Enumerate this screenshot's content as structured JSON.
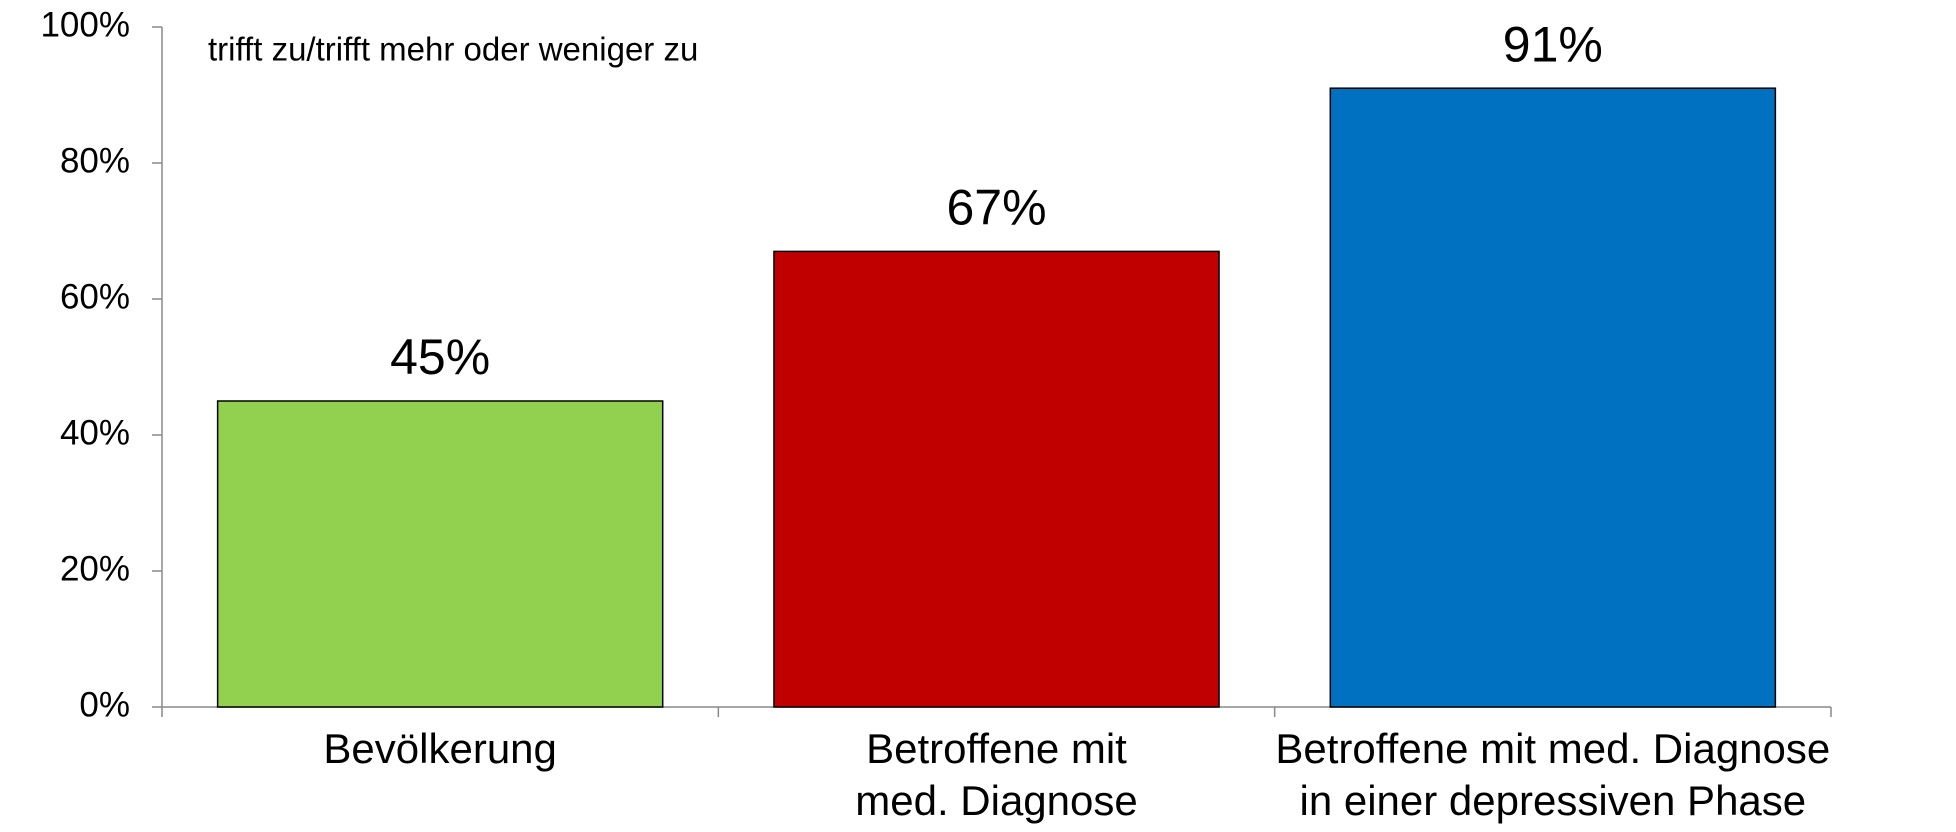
{
  "chart_data": {
    "type": "bar",
    "annotation": "trifft zu/trifft mehr oder weniger zu",
    "categories": [
      [
        "Bevölkerung"
      ],
      [
        "Betroffene mit",
        "med. Diagnose"
      ],
      [
        "Betroffene mit med. Diagnose",
        "in einer depressiven Phase"
      ]
    ],
    "values": [
      45,
      67,
      91
    ],
    "value_labels": [
      "45%",
      "67%",
      "91%"
    ],
    "colors": [
      "#92d050",
      "#c00000",
      "#0070c0"
    ],
    "ylim": [
      0,
      100
    ],
    "yticks": [
      {
        "value": 0,
        "label": "0%"
      },
      {
        "value": 20,
        "label": "20%"
      },
      {
        "value": 40,
        "label": "40%"
      },
      {
        "value": 60,
        "label": "60%"
      },
      {
        "value": 80,
        "label": "80%"
      },
      {
        "value": 100,
        "label": "100%"
      }
    ],
    "grid": false
  }
}
